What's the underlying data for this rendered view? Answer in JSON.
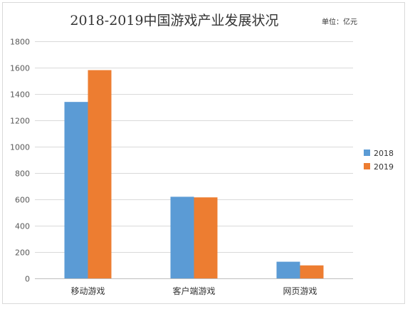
{
  "chart_data": {
    "type": "bar",
    "title": "2018-2019中国游戏产业发展状况",
    "unit_note": "单位：亿元",
    "categories": [
      "移动游戏",
      "客户端游戏",
      "网页游戏"
    ],
    "series": [
      {
        "name": "2018",
        "values": [
          1339.6,
          619.6,
          126.5
        ],
        "color": "#5b9bd5"
      },
      {
        "name": "2019",
        "values": [
          1581.1,
          615.1,
          98.7
        ],
        "color": "#ed7d31"
      }
    ],
    "ylim": [
      0,
      1800
    ],
    "yticks": [
      0,
      200,
      400,
      600,
      800,
      1000,
      1200,
      1400,
      1600,
      1800
    ],
    "grid": true,
    "legend_position": "right",
    "xlabel": "",
    "ylabel": ""
  }
}
